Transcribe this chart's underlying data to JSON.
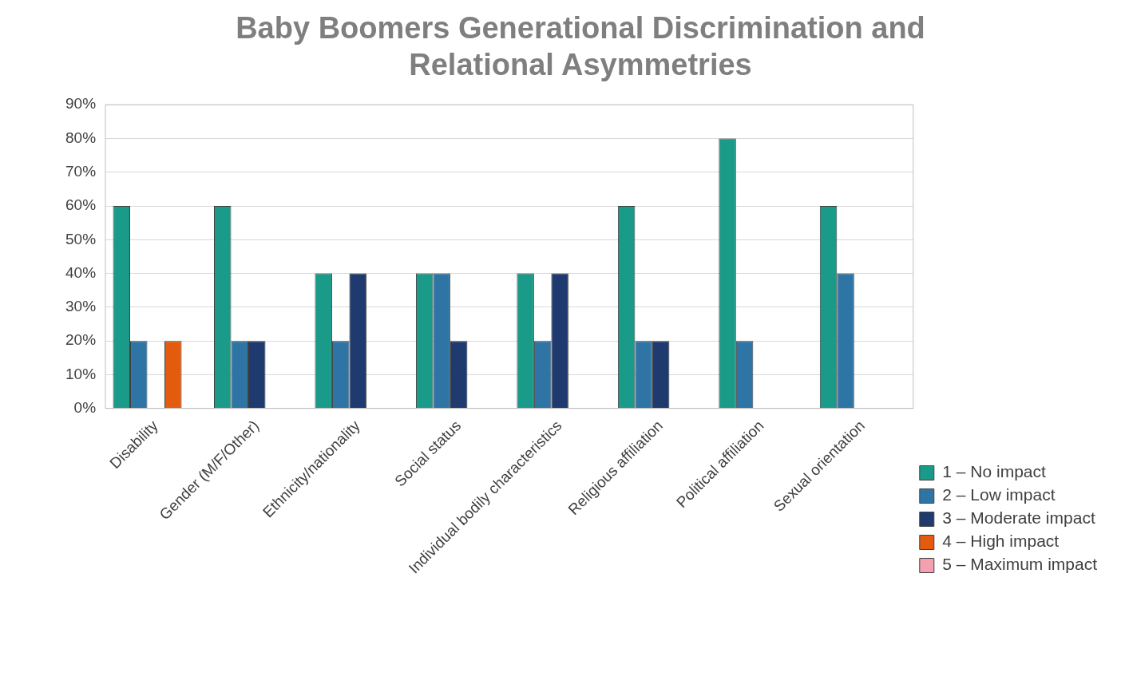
{
  "chart_data": {
    "type": "bar",
    "title": "Baby Boomers Generational Discrimination and Relational Asymmetries",
    "categories": [
      "Disability",
      "Gender (M/F/Other)",
      "Ethnicity/nationality",
      "Social status",
      "Individual bodily characteristics",
      "Religious affiliation",
      "Political affiliation",
      "Sexual orientation"
    ],
    "series": [
      {
        "name": "1 – No impact",
        "color": "#1a9a88",
        "values": [
          60,
          60,
          40,
          40,
          40,
          60,
          80,
          60
        ]
      },
      {
        "name": "2 – Low impact",
        "color": "#2e75a6",
        "values": [
          20,
          20,
          20,
          40,
          20,
          20,
          20,
          40
        ]
      },
      {
        "name": "3 – Moderate impact",
        "color": "#1f3a6e",
        "values": [
          0,
          20,
          40,
          20,
          40,
          20,
          0,
          0
        ]
      },
      {
        "name": "4 – High impact",
        "color": "#e35b0e",
        "values": [
          20,
          0,
          0,
          0,
          0,
          0,
          0,
          0
        ]
      },
      {
        "name": "5 – Maximum impact",
        "color": "#f4a0b0",
        "values": [
          0,
          0,
          0,
          0,
          0,
          0,
          0,
          0
        ]
      }
    ],
    "ylim": [
      0,
      90
    ],
    "yticks": [
      {
        "value": 0,
        "label": "0%"
      },
      {
        "value": 10,
        "label": "10%"
      },
      {
        "value": 20,
        "label": "20%"
      },
      {
        "value": 30,
        "label": "30%"
      },
      {
        "value": 40,
        "label": "40%"
      },
      {
        "value": 50,
        "label": "50%"
      },
      {
        "value": 60,
        "label": "60%"
      },
      {
        "value": 70,
        "label": "70%"
      },
      {
        "value": 80,
        "label": "80%"
      },
      {
        "value": 90,
        "label": "90%"
      }
    ],
    "grid": "y",
    "legend": "right"
  }
}
